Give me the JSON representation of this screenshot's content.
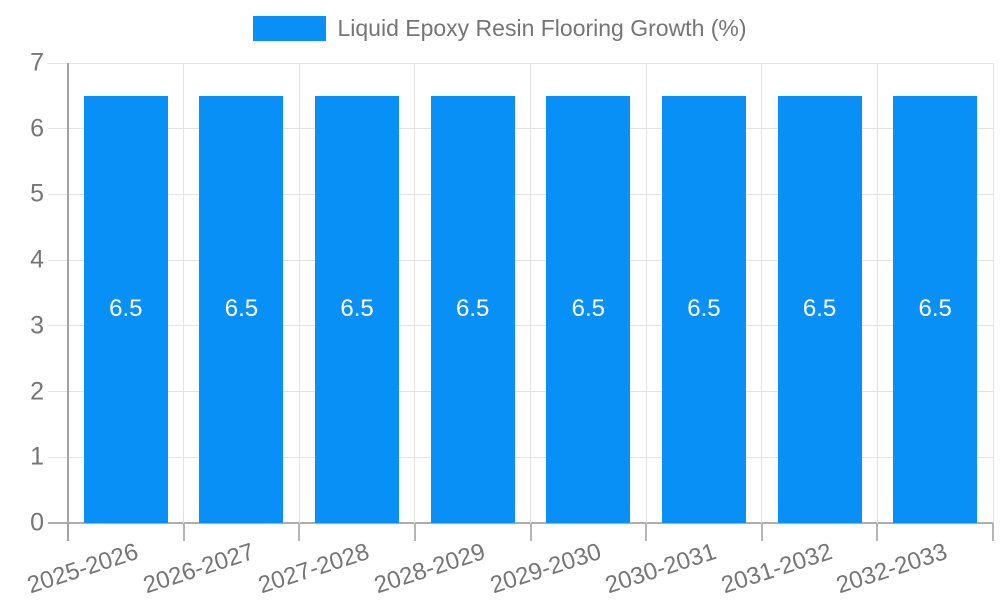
{
  "chart_data": {
    "type": "bar",
    "title": "",
    "legend_label": "Liquid Epoxy Resin Flooring Growth (%)",
    "legend_position": "top-center",
    "categories": [
      "2025-2026",
      "2026-2027",
      "2027-2028",
      "2028-2029",
      "2029-2030",
      "2030-2031",
      "2031-2032",
      "2032-2033"
    ],
    "values": [
      6.5,
      6.5,
      6.5,
      6.5,
      6.5,
      6.5,
      6.5,
      6.5
    ],
    "value_labels": [
      "6.5",
      "6.5",
      "6.5",
      "6.5",
      "6.5",
      "6.5",
      "6.5",
      "6.5"
    ],
    "xlabel": "",
    "ylabel": "",
    "ylim": [
      0,
      7
    ],
    "yticks": [
      0,
      1,
      2,
      3,
      4,
      5,
      6,
      7
    ],
    "grid": true,
    "x_label_rotation_deg": -18,
    "bar_color": "#0990f7",
    "value_label_color": "#ffffff",
    "axis_text_color": "#757575",
    "gridline_color": "#e3e3e3"
  }
}
